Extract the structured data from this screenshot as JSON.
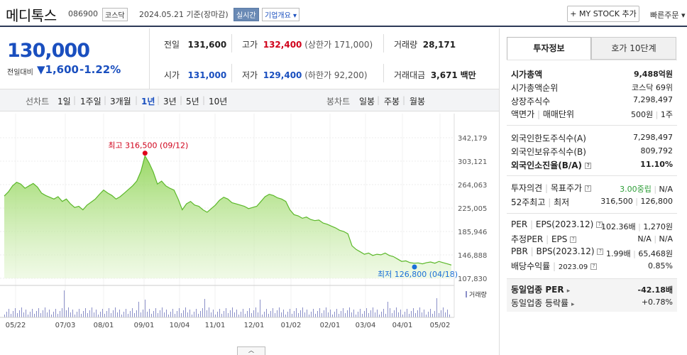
{
  "header": {
    "name": "메디톡스",
    "code": "086900",
    "market": "코스닥",
    "date": "2024.05.21",
    "basis": "기준(장마감)",
    "realtime": "실시간",
    "company_overview": "기업개요",
    "mystock": "+ MY STOCK 추가",
    "fast_order": "빠른주문"
  },
  "price": {
    "current": "130,000",
    "diff_label": "전일대비",
    "diff": "▼1,600",
    "diff_pct": "-1.22%"
  },
  "quote": {
    "prev_label": "전일",
    "prev": "131,600",
    "high_label": "고가",
    "high": "132,400",
    "upper_label": "(상한가",
    "upper": "171,000)",
    "volume_label": "거래량",
    "volume": "28,171",
    "open_label": "시가",
    "open": "131,000",
    "low_label": "저가",
    "low": "129,400",
    "lower_label": "(하한가",
    "lower": "92,200)",
    "amount_label": "거래대금",
    "amount": "3,671",
    "amount_unit": "백만"
  },
  "periods": {
    "line_label": "선차트",
    "items": [
      "1일",
      "1주일",
      "3개월",
      "1년",
      "3년",
      "5년",
      "10년"
    ],
    "selected": "1년",
    "candle_label": "봉차트",
    "candle_items": [
      "일봉",
      "주봉",
      "월봉"
    ]
  },
  "chart_data": {
    "type": "area",
    "y_ticks": [
      "342,179",
      "303,121",
      "264,063",
      "225,005",
      "185,946",
      "146,888",
      "107,830"
    ],
    "ylim": [
      107830,
      342179
    ],
    "x_ticks": [
      "05/22",
      "07/03",
      "08/01",
      "09/01",
      "10/04",
      "11/01",
      "12/01",
      "01/02",
      "02/01",
      "03/04",
      "04/01",
      "05/02"
    ],
    "high_annotation": "최고 316,500 (09/12)",
    "low_annotation": "최저 126,800 (04/18)",
    "volume_label": "거래량",
    "color": "#9ad65f",
    "values": [
      245000,
      252000,
      262000,
      268000,
      265000,
      258000,
      262000,
      266000,
      260000,
      250000,
      246000,
      243000,
      240000,
      244000,
      236000,
      240000,
      232000,
      226000,
      228000,
      222000,
      230000,
      235000,
      240000,
      248000,
      255000,
      250000,
      246000,
      240000,
      244000,
      250000,
      256000,
      262000,
      270000,
      286000,
      312000,
      300000,
      285000,
      265000,
      270000,
      262000,
      258000,
      255000,
      240000,
      222000,
      232000,
      236000,
      230000,
      228000,
      222000,
      218000,
      224000,
      230000,
      238000,
      243000,
      240000,
      234000,
      232000,
      230000,
      228000,
      224000,
      226000,
      228000,
      236000,
      244000,
      248000,
      246000,
      242000,
      240000,
      236000,
      222000,
      214000,
      212000,
      208000,
      210000,
      206000,
      204000,
      205000,
      200000,
      198000,
      195000,
      192000,
      188000,
      186000,
      182000,
      162000,
      156000,
      152000,
      148000,
      150000,
      146000,
      148000,
      147000,
      150000,
      146000,
      144000,
      140000,
      136000,
      137000,
      134000,
      133000,
      133500,
      132000,
      134000,
      135000,
      133000,
      136000,
      134000,
      132000,
      130000
    ]
  },
  "right": {
    "tab_invest": "투자정보",
    "tab_hoga": "호가 10단계",
    "market_cap_label": "시가총액",
    "market_cap": "9,488억원",
    "rank_label": "시가총액순위",
    "rank": "코스닥 69위",
    "shares_label": "상장주식수",
    "shares": "7,298,497",
    "par_label": "액면가",
    "unit_label": "매매단위",
    "par": "500원",
    "unit": "1주",
    "foreign_limit_label": "외국인한도주식수(A)",
    "foreign_limit": "7,298,497",
    "foreign_hold_label": "외국인보유주식수(B)",
    "foreign_hold": "809,792",
    "foreign_ratio_label": "외국인소진율(B/A)",
    "foreign_ratio": "11.10%",
    "opinion_label": "투자의견",
    "target_label": "목표주가",
    "opinion": "3.00중립",
    "target": "N/A",
    "w52_label": "52주최고",
    "w52_low_label": "최저",
    "w52_high": "316,500",
    "w52_low": "126,800",
    "per_label": "PER",
    "eps_label": "EPS(2023.12)",
    "per": "102.36배",
    "eps": "1,270원",
    "est_per_label": "추정PER",
    "est_eps_label": "EPS",
    "est_per": "N/A",
    "est_eps": "N/A",
    "pbr_label": "PBR",
    "bps_label": "BPS(2023.12)",
    "pbr": "1.99배",
    "bps": "65,468원",
    "div_label": "배당수익률",
    "div_date": "2023.09",
    "div": "0.85%",
    "ind_per_label": "동일업종 PER",
    "ind_per": "-42.18배",
    "ind_rate_label": "동일업종 등락률",
    "ind_rate": "+0.78%"
  },
  "toggle": "︿"
}
